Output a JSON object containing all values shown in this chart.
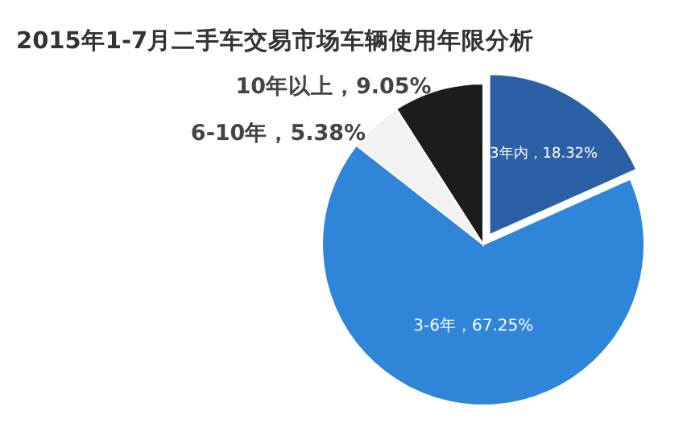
{
  "chart_data": {
    "type": "pie",
    "title": "2015年1-7月二手车交易市场车辆使用年限分析",
    "categories": [
      "3年内",
      "3-6年",
      "6-10年",
      "10年以上"
    ],
    "values": [
      18.32,
      67.25,
      5.38,
      9.05
    ],
    "value_labels": [
      "18.32%",
      "67.25%",
      "5.38%",
      "9.05%"
    ],
    "colors": [
      "#2b5fa6",
      "#2f86d8",
      "#f2f2f2",
      "#1c1c1c"
    ]
  }
}
